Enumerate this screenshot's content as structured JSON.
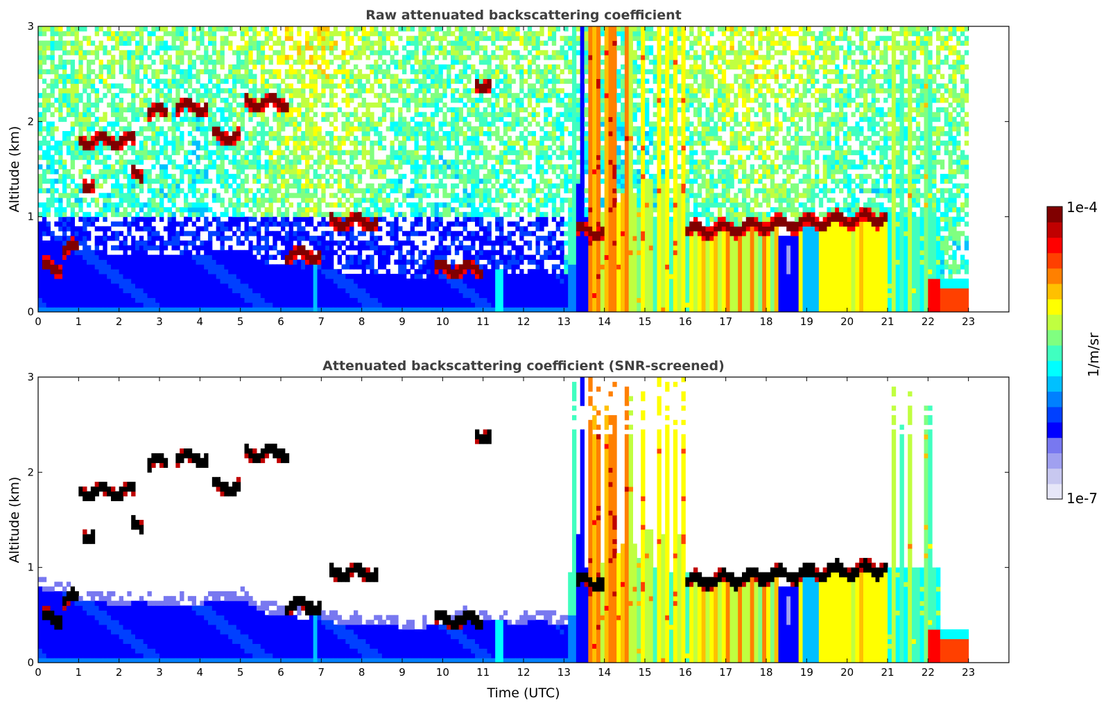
{
  "chart_data": [
    {
      "type": "heatmap",
      "title": "Raw attenuated backscattering coefficient",
      "xlabel": "",
      "ylabel": "Altitude (km)",
      "xlim": [
        0,
        24
      ],
      "ylim": [
        0,
        3
      ],
      "x_ticks": [
        "0",
        "1",
        "2",
        "3",
        "4",
        "5",
        "6",
        "7",
        "8",
        "9",
        "10",
        "11",
        "12",
        "13",
        "14",
        "15",
        "16",
        "17",
        "18",
        "19",
        "20",
        "21",
        "22",
        "23"
      ],
      "y_ticks": [
        "0",
        "1",
        "2",
        "3"
      ],
      "data_end_time": 23,
      "screening": "none",
      "features": [
        {
          "kind": "boundary_layer",
          "from": 0,
          "to": 13.1,
          "top": [
            [
              0,
              0.8
            ],
            [
              1,
              0.65
            ],
            [
              3,
              0.6
            ],
            [
              5,
              0.65
            ],
            [
              6,
              0.5
            ],
            [
              7,
              0.45
            ],
            [
              9,
              0.35
            ],
            [
              11,
              0.45
            ],
            [
              13,
              0.4
            ]
          ]
        },
        {
          "kind": "cloud_layer",
          "from": 0.1,
          "to": 0.6,
          "alt": 0.47
        },
        {
          "kind": "cloud_layer",
          "from": 0.6,
          "to": 1.0,
          "alt": 0.66
        },
        {
          "kind": "cloud_layer",
          "from": 1.0,
          "to": 2.4,
          "alt": 1.8
        },
        {
          "kind": "cloud_layer",
          "from": 1.1,
          "to": 1.4,
          "alt": 1.35
        },
        {
          "kind": "cloud_layer",
          "from": 2.3,
          "to": 2.6,
          "alt": 1.45
        },
        {
          "kind": "cloud_layer",
          "from": 2.7,
          "to": 3.2,
          "alt": 2.1
        },
        {
          "kind": "cloud_layer",
          "from": 3.4,
          "to": 4.2,
          "alt": 2.15
        },
        {
          "kind": "cloud_layer",
          "from": 4.3,
          "to": 5.0,
          "alt": 1.85
        },
        {
          "kind": "cloud_layer",
          "from": 5.1,
          "to": 6.2,
          "alt": 2.2
        },
        {
          "kind": "cloud_layer",
          "from": 6.1,
          "to": 7.0,
          "alt": 0.6
        },
        {
          "kind": "cloud_layer",
          "from": 7.2,
          "to": 8.4,
          "alt": 0.95
        },
        {
          "kind": "cloud_layer",
          "from": 9.8,
          "to": 11.0,
          "alt": 0.45
        },
        {
          "kind": "cloud_layer",
          "from": 10.8,
          "to": 11.2,
          "alt": 2.4
        },
        {
          "kind": "cloud_layer",
          "from": 13.3,
          "to": 14.0,
          "alt": 0.85
        },
        {
          "kind": "cloud_layer",
          "from": 16.0,
          "to": 21.0,
          "alt": [
            0.85,
            1.0
          ]
        },
        {
          "kind": "precipitation_columns",
          "from": 13.1,
          "to": 16.1
        },
        {
          "kind": "aerosol_layer",
          "from": 16.1,
          "to": 21.0
        },
        {
          "kind": "precipitation_columns",
          "from": 21.0,
          "to": 22.3
        },
        {
          "kind": "clear_gap",
          "from": 18.3,
          "to": 18.8,
          "top": 0.8
        }
      ]
    },
    {
      "type": "heatmap",
      "title": "Attenuated backscattering coefficient (SNR-screened)",
      "xlabel": "Time (UTC)",
      "ylabel": "Altitude (km)",
      "xlim": [
        0,
        24
      ],
      "ylim": [
        0,
        3
      ],
      "x_ticks": [
        "0",
        "1",
        "2",
        "3",
        "4",
        "5",
        "6",
        "7",
        "8",
        "9",
        "10",
        "11",
        "12",
        "13",
        "14",
        "15",
        "16",
        "17",
        "18",
        "19",
        "20",
        "21",
        "22",
        "23"
      ],
      "y_ticks": [
        "0",
        "1",
        "2",
        "3"
      ],
      "data_end_time": 23,
      "screening": "snr",
      "saturated_color": "#000000"
    }
  ],
  "colorbar": {
    "label": "1/m/sr",
    "max_label": "1e-4",
    "min_label": "1e-7",
    "scale": "log",
    "range": [
      1e-07,
      0.0001
    ],
    "colormap": "jet",
    "colors": [
      "#e6e6f8",
      "#c8c8f0",
      "#a0a0f0",
      "#7878f0",
      "#0000ff",
      "#0040ff",
      "#0080ff",
      "#00c0ff",
      "#00ffff",
      "#40ffc0",
      "#80ff80",
      "#c0ff40",
      "#ffff00",
      "#ffc000",
      "#ff8000",
      "#ff4000",
      "#ff0000",
      "#c00000",
      "#800000"
    ]
  }
}
